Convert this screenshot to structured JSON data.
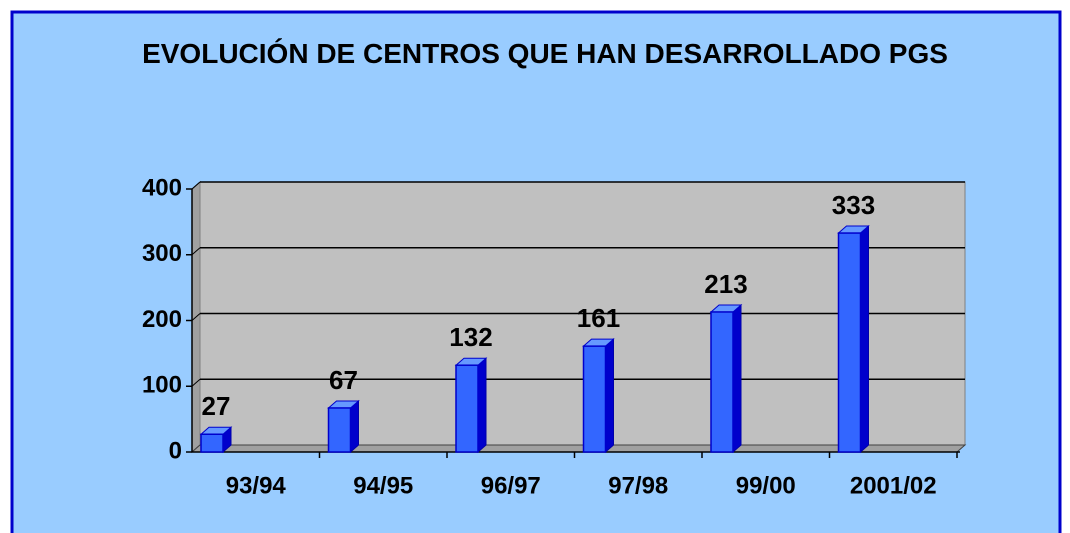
{
  "chart_data": {
    "type": "bar",
    "title": "EVOLUCIÓN DE CENTROS QUE HAN DESARROLLADO PGS",
    "categories": [
      "93/94",
      "94/95",
      "96/97",
      "97/98",
      "99/00",
      "2001/02"
    ],
    "values": [
      27,
      67,
      132,
      161,
      213,
      333
    ],
    "color": "#3366ff",
    "ylim": [
      0,
      400
    ],
    "yticks": [
      0,
      100,
      200,
      300,
      400
    ],
    "grid": true
  }
}
